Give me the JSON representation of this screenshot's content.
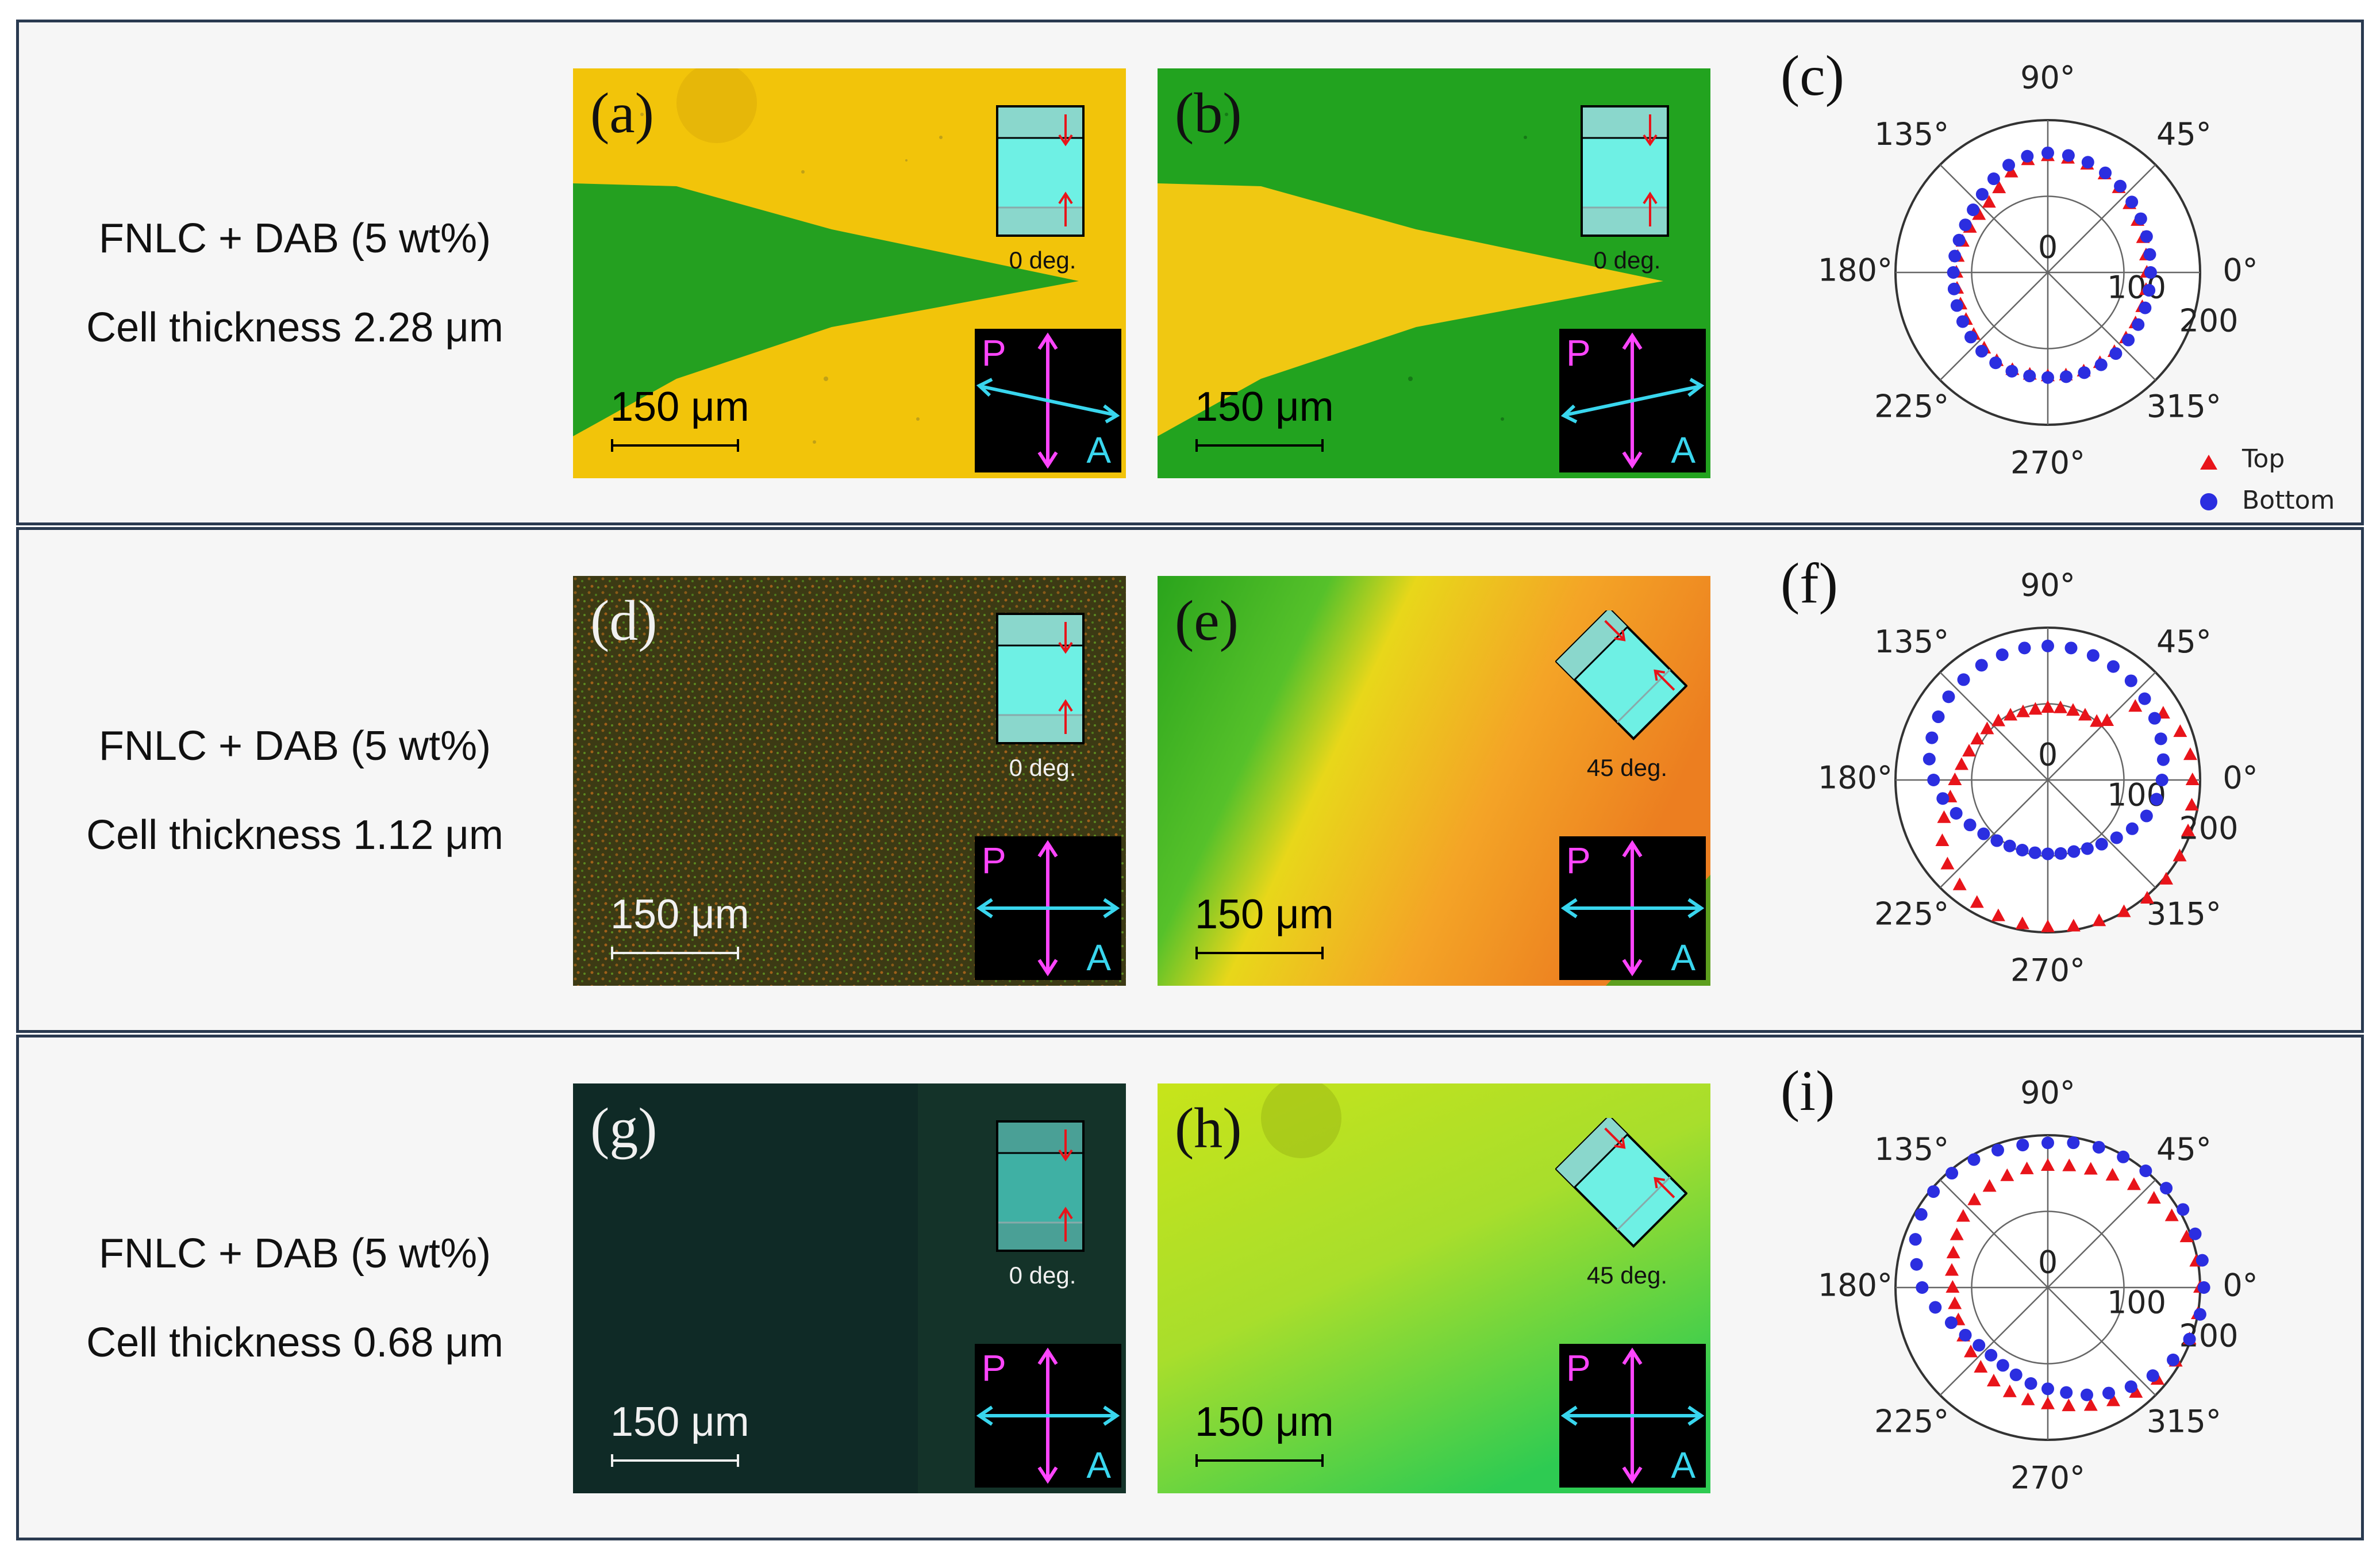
{
  "rows": [
    {
      "caption_line1": "FNLC + DAB (5 wt%)",
      "caption_line2": "Cell thickness 2.28 μm",
      "left_label": "(a)",
      "right_label": "(b)",
      "polar_label": "(c)",
      "left_inset_angle": "0 deg.",
      "right_inset_angle": "0 deg."
    },
    {
      "caption_line1": "FNLC + DAB (5 wt%)",
      "caption_line2": "Cell thickness 1.12 μm",
      "left_label": "(d)",
      "right_label": "(e)",
      "polar_label": "(f)",
      "left_inset_angle": "0 deg.",
      "right_inset_angle": "45 deg."
    },
    {
      "caption_line1": "FNLC + DAB (5 wt%)",
      "caption_line2": "Cell thickness 0.68 μm",
      "left_label": "(g)",
      "right_label": "(h)",
      "polar_label": "(i)",
      "left_inset_angle": "0 deg.",
      "right_inset_angle": "45 deg."
    }
  ],
  "scale_bar": "150 μm",
  "polarizer_label": "P",
  "analyzer_label": "A",
  "colors": {
    "yellow": "#f2c40a",
    "green": "#22a31f",
    "top": "#e8141a",
    "bottom": "#2b2ee0",
    "polarizer": "#ff45ff",
    "analyzer": "#39d6ee",
    "inset": "#6ef0e4"
  },
  "chart_data": [
    {
      "type": "scatter",
      "coordinate_system": "polar",
      "title": "(c)",
      "angle_ticks": [
        "0°",
        "45°",
        "90°",
        "135°",
        "180°",
        "225°",
        "270°",
        "315°"
      ],
      "radial_ticks": [
        "0",
        "100",
        "200"
      ],
      "rlim": [
        0,
        200
      ],
      "legend": [
        "Top",
        "Bottom"
      ],
      "legend_position": "bottom-right",
      "series": [
        {
          "name": "Top",
          "marker": "triangle",
          "theta": [
            0,
            10,
            20,
            30,
            40,
            50,
            60,
            70,
            80,
            90,
            100,
            110,
            120,
            130,
            140,
            150,
            160,
            170,
            180,
            190,
            200,
            210,
            220,
            230,
            240,
            250,
            260,
            270,
            280,
            290,
            300,
            310,
            320,
            330,
            340,
            350
          ],
          "r": [
            130,
            131,
            133,
            136,
            140,
            145,
            149,
            151,
            152,
            153,
            150,
            140,
            128,
            120,
            118,
            118,
            119,
            120,
            120,
            121,
            122,
            124,
            127,
            130,
            134,
            136,
            136,
            136,
            137,
            138,
            137,
            136,
            134,
            133,
            132,
            131
          ]
        },
        {
          "name": "Bottom",
          "marker": "circle",
          "theta": [
            0,
            10,
            20,
            30,
            40,
            50,
            60,
            70,
            80,
            90,
            100,
            110,
            120,
            130,
            140,
            150,
            160,
            170,
            180,
            190,
            200,
            210,
            220,
            230,
            240,
            250,
            260,
            270,
            280,
            290,
            300,
            310,
            320,
            330,
            340,
            350
          ],
          "r": [
            135,
            136,
            138,
            141,
            144,
            148,
            151,
            154,
            156,
            157,
            155,
            150,
            142,
            134,
            128,
            125,
            124,
            124,
            124,
            125,
            127,
            129,
            132,
            135,
            137,
            138,
            138,
            138,
            139,
            140,
            140,
            139,
            138,
            137,
            136,
            135
          ]
        }
      ]
    },
    {
      "type": "scatter",
      "coordinate_system": "polar",
      "title": "(f)",
      "angle_ticks": [
        "0°",
        "45°",
        "90°",
        "135°",
        "180°",
        "225°",
        "270°",
        "315°"
      ],
      "radial_ticks": [
        "0",
        "100",
        "200"
      ],
      "rlim": [
        0,
        200
      ],
      "legend": [
        "Top",
        "Bottom"
      ],
      "series": [
        {
          "name": "Top",
          "marker": "triangle",
          "theta": [
            0,
            10,
            20,
            30,
            40,
            45,
            50,
            60,
            70,
            80,
            90,
            100,
            110,
            120,
            130,
            140,
            150,
            160,
            170,
            180,
            190,
            200,
            210,
            220,
            230,
            240,
            250,
            260,
            270,
            280,
            290,
            300,
            310,
            320,
            330,
            340,
            350
          ],
          "r": [
            190,
            190,
            185,
            175,
            150,
            110,
            100,
            98,
            97,
            96,
            95,
            94,
            95,
            98,
            101,
            104,
            107,
            110,
            115,
            122,
            130,
            145,
            160,
            172,
            180,
            186,
            190,
            192,
            193,
            195,
            197,
            200,
            203,
            203,
            200,
            196,
            192
          ]
        },
        {
          "name": "Bottom",
          "marker": "circle",
          "theta": [
            0,
            10,
            20,
            30,
            40,
            50,
            60,
            70,
            80,
            90,
            100,
            110,
            120,
            130,
            140,
            150,
            160,
            170,
            180,
            190,
            200,
            210,
            220,
            230,
            240,
            250,
            260,
            270,
            280,
            290,
            300,
            310,
            320,
            330,
            340,
            350
          ],
          "r": [
            150,
            154,
            158,
            162,
            166,
            170,
            172,
            174,
            176,
            176,
            176,
            175,
            174,
            172,
            170,
            166,
            162,
            158,
            150,
            140,
            128,
            118,
            110,
            104,
            100,
            98,
            97,
            97,
            98,
            100,
            104,
            110,
            118,
            128,
            138,
            145
          ]
        }
      ]
    },
    {
      "type": "scatter",
      "coordinate_system": "polar",
      "title": "(i)",
      "angle_ticks": [
        "0°",
        "45°",
        "90°",
        "135°",
        "180°",
        "225°",
        "270°",
        "315°"
      ],
      "radial_ticks": [
        "0",
        "100",
        "200"
      ],
      "rlim": [
        0,
        200
      ],
      "legend": [
        "Top",
        "Bottom"
      ],
      "series": [
        {
          "name": "Top",
          "marker": "triangle",
          "theta": [
            0,
            10,
            20,
            30,
            40,
            50,
            60,
            70,
            80,
            90,
            100,
            110,
            120,
            130,
            140,
            150,
            160,
            170,
            180,
            190,
            200,
            210,
            220,
            230,
            240,
            250,
            260,
            270,
            280,
            290,
            300,
            310,
            320,
            330,
            340,
            350
          ],
          "r": [
            200,
            198,
            194,
            188,
            182,
            176,
            170,
            165,
            162,
            160,
            158,
            156,
            153,
            150,
            145,
            138,
            132,
            128,
            125,
            124,
            125,
            128,
            132,
            137,
            142,
            146,
            150,
            153,
            158,
            165,
            172,
            180,
            188,
            194,
            198,
            200
          ]
        },
        {
          "name": "Bottom",
          "marker": "circle",
          "theta": [
            0,
            10,
            20,
            30,
            40,
            50,
            60,
            70,
            80,
            90,
            100,
            110,
            120,
            130,
            140,
            150,
            160,
            170,
            180,
            190,
            200,
            210,
            220,
            230,
            240,
            250,
            260,
            270,
            280,
            290,
            300,
            310,
            320,
            330,
            340,
            350
          ],
          "r": [
            205,
            206,
            206,
            205,
            203,
            200,
            198,
            196,
            193,
            190,
            190,
            192,
            194,
            196,
            196,
            192,
            185,
            175,
            165,
            150,
            135,
            125,
            118,
            116,
            118,
            122,
            128,
            133,
            140,
            150,
            160,
            170,
            180,
            190,
            198,
            203
          ]
        }
      ]
    }
  ]
}
